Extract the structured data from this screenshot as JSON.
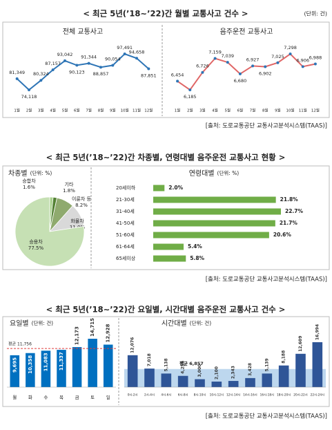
{
  "sections": [
    {
      "title": "< 최근 5년(’18~’22)간 월별 교통사고 건수 >",
      "unit": "(단위: 건)",
      "source": "[출처: 도로교통공단 교통사고분석시스템(TAAS)]"
    },
    {
      "title": "< 최근 5년(’18~’22)간 차종별, 연령대별 음주운전 교통사고 현황 >",
      "source": "[출처: 도로교통공단 교통사고분석시스템(TAAS)]"
    },
    {
      "title": "< 최근 5년(’18~’22)간 요일별, 시간대별 음주운전 교통사고 건수 >",
      "source": "[출처: 도로교통공단 교통사고분석시스템(TAAS)]"
    }
  ],
  "chart_data": [
    {
      "type": "line",
      "title": "전체 교통사고",
      "categories": [
        "1월",
        "2월",
        "3월",
        "4월",
        "5월",
        "6월",
        "7월",
        "8월",
        "9월",
        "10월",
        "11월",
        "12월"
      ],
      "values": [
        81349,
        74118,
        80324,
        87157,
        93042,
        90123,
        91344,
        88857,
        90054,
        97491,
        94658,
        87851
      ],
      "value_labels": [
        "81,349",
        "74,118",
        "80,324",
        "87,157",
        "93,042",
        "90,123",
        "91,344",
        "88,857",
        "90,054",
        "97,491",
        "94,658",
        "87,851"
      ],
      "color": "#2e75b6",
      "marker_color": "#2e75b6"
    },
    {
      "type": "line",
      "title": "음주운전 교통사고",
      "categories": [
        "1월",
        "2월",
        "3월",
        "4월",
        "5월",
        "6월",
        "7월",
        "8월",
        "9월",
        "10월",
        "11월",
        "12월"
      ],
      "values": [
        6454,
        6185,
        6726,
        7159,
        7039,
        6680,
        6927,
        6902,
        7025,
        7298,
        6906,
        6988
      ],
      "value_labels": [
        "6,454",
        "6,185",
        "6,726",
        "7,159",
        "7,039",
        "6,680",
        "6,927",
        "6,902",
        "7,025",
        "7,298",
        "6,906",
        "6,988"
      ],
      "color": "#e06666",
      "marker_color": "#2e75b6"
    },
    {
      "type": "pie",
      "title": "차종별",
      "unit": "(단위: %)",
      "categories": [
        "승합차",
        "기타",
        "이륜차 등",
        "화물차",
        "승용차"
      ],
      "values": [
        1.6,
        1.8,
        8.2,
        11.0,
        77.5
      ],
      "value_labels": [
        "1.6%",
        "1.8%",
        "8.2%",
        "11.0%",
        "77.5%"
      ],
      "colors": [
        "#a9d18e",
        "#548235",
        "#8faa6e",
        "#d9d9d9",
        "#c6e0b4"
      ]
    },
    {
      "type": "barh",
      "title": "연령대별",
      "unit": "(단위: %)",
      "categories": [
        "20세이하",
        "21-30세",
        "31-40세",
        "41-50세",
        "51-60세",
        "61-64세",
        "65세이상"
      ],
      "values": [
        2.0,
        21.8,
        22.7,
        21.7,
        20.6,
        5.4,
        5.8
      ],
      "value_labels": [
        "2.0%",
        "21.8%",
        "22.7%",
        "21.7%",
        "20.6%",
        "5.4%",
        "5.8%"
      ],
      "color": "#70ad47"
    },
    {
      "type": "bar",
      "title": "요일별",
      "unit": "(단위: 건)",
      "categories": [
        "월",
        "화",
        "수",
        "목",
        "금",
        "토",
        "일"
      ],
      "values": [
        9695,
        10358,
        11083,
        11337,
        12173,
        14715,
        12928
      ],
      "value_labels": [
        "9,695",
        "10,358",
        "11,083",
        "11,337",
        "12,173",
        "14,715",
        "12,928"
      ],
      "color": "#0070c0",
      "average": {
        "value": 11756,
        "label": "평균 11,756"
      },
      "average_style": "line",
      "average_color": "#e03c3c"
    },
    {
      "type": "bar",
      "title": "시간대별",
      "unit": "(단위: 건)",
      "categories": [
        "0시-2시",
        "2시-4시",
        "4시-6시",
        "6시-8시",
        "8시-10시",
        "10시-12시",
        "12시-14시",
        "14시-16시",
        "16시-18시",
        "18시-20시",
        "20시-22시",
        "22시-24시"
      ],
      "values": [
        12076,
        7018,
        5138,
        4256,
        3000,
        2100,
        2343,
        3428,
        5139,
        8188,
        12609,
        16994
      ],
      "value_labels": [
        "12,076",
        "7,018",
        "5,138",
        "4,256",
        "3,000",
        "2,100",
        "2,343",
        "3,428",
        "5,139",
        "8,188",
        "12,609",
        "16,994"
      ],
      "color": "#2f5597",
      "average": {
        "value": 6857,
        "label": "평균 6,857"
      },
      "average_style": "band",
      "average_color": "#bdd7ee"
    }
  ]
}
